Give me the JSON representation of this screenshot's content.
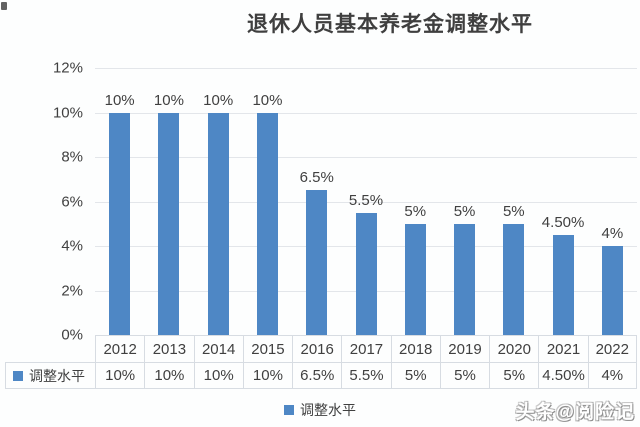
{
  "title": "退休人员基本养老金调整水平",
  "watermark": "头条@阅险记",
  "legend": {
    "label": "调整水平"
  },
  "colors": {
    "bar": "#4e87c5",
    "grid": "#e3e6ea",
    "table_border": "#d7dce2",
    "text": "#404040"
  },
  "chart_data": {
    "type": "bar",
    "title": "退休人员基本养老金调整水平",
    "categories": [
      "2012",
      "2013",
      "2014",
      "2015",
      "2016",
      "2017",
      "2018",
      "2019",
      "2020",
      "2021",
      "2022"
    ],
    "series": [
      {
        "name": "调整水平",
        "values": [
          10,
          10,
          10,
          10,
          6.5,
          5.5,
          5,
          5,
          5,
          4.5,
          4
        ]
      }
    ],
    "data_labels": [
      "10%",
      "10%",
      "10%",
      "10%",
      "6.5%",
      "5.5%",
      "5%",
      "5%",
      "5%",
      "4.50%",
      "4%"
    ],
    "table_values": [
      "10%",
      "10%",
      "10%",
      "10%",
      "6.5%",
      "5.5%",
      "5%",
      "5%",
      "5%",
      "4.50%",
      "4%"
    ],
    "y_ticks": [
      "12%",
      "10%",
      "8%",
      "6%",
      "4%",
      "2%",
      "0%"
    ],
    "ylabel": "",
    "xlabel": "",
    "ylim": [
      0,
      12
    ],
    "grid": true,
    "legend_position": "bottom",
    "data_table_shown": true
  }
}
